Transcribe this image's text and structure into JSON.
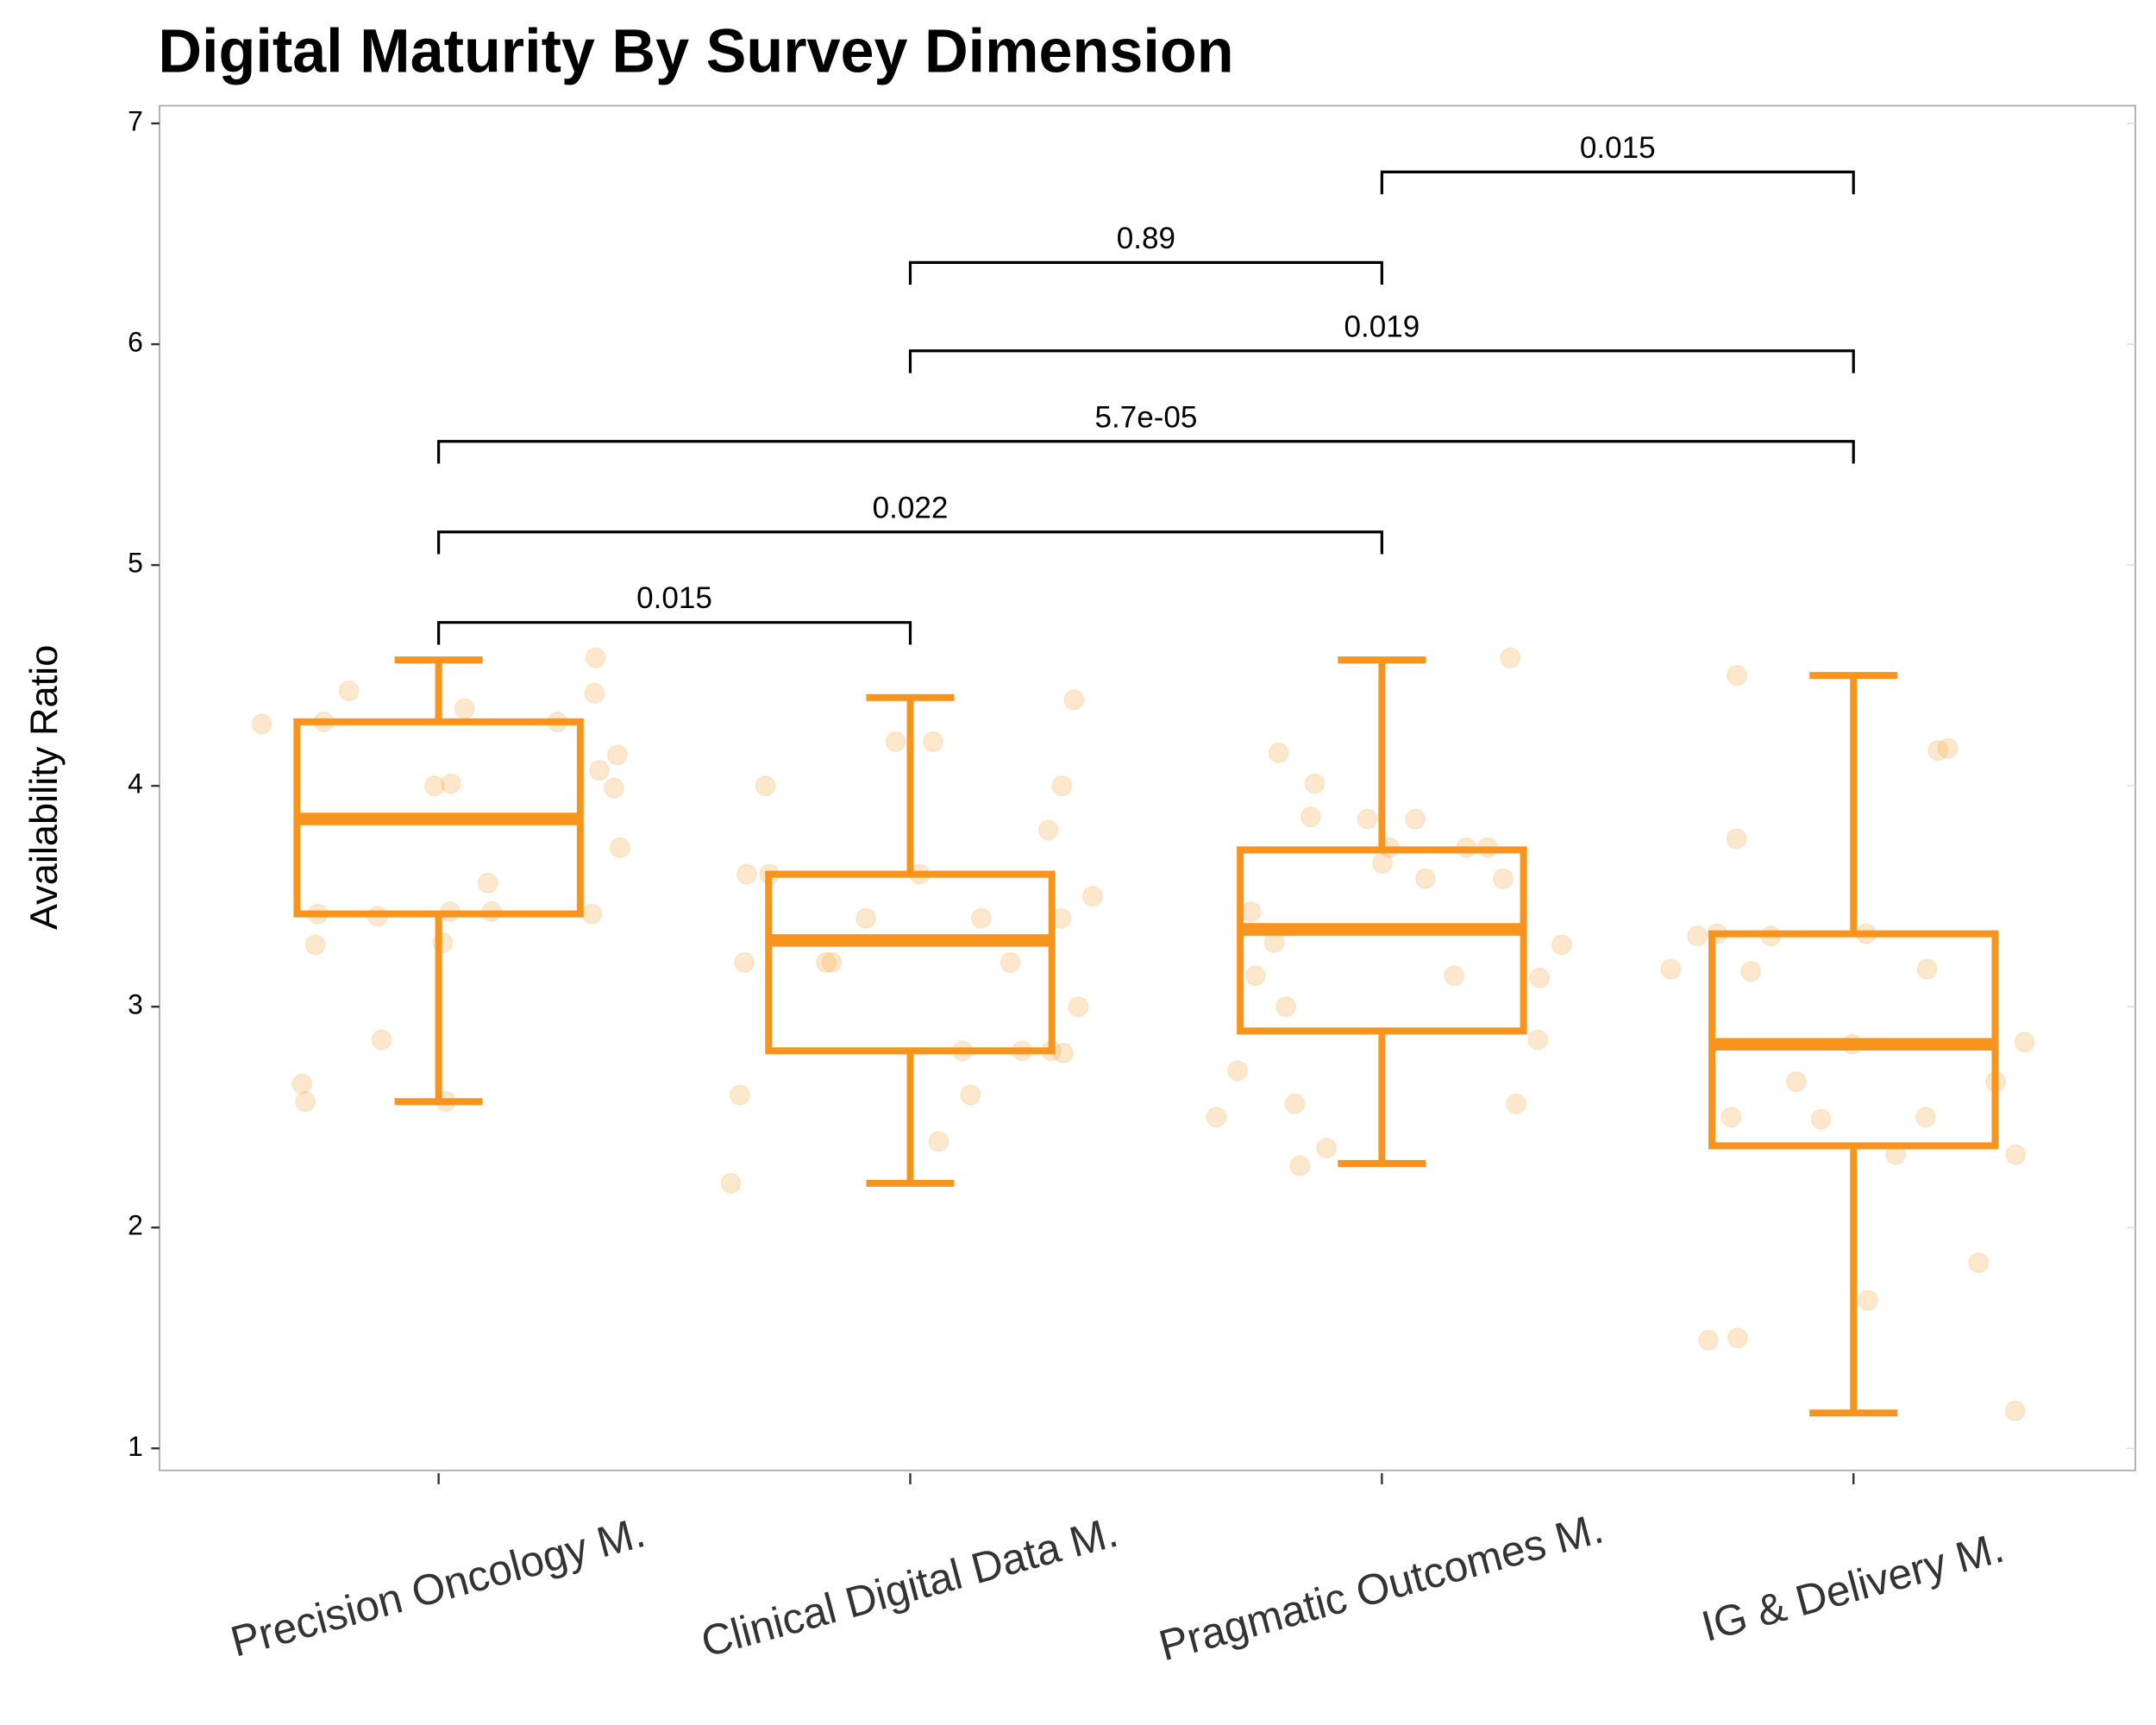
{
  "chart_data": {
    "type": "box",
    "title": "Digital Maturity By Survey Dimension",
    "y_label": "Availability Ratio",
    "categories": [
      "Precision Oncology M.",
      "Clinical Digital Data M.",
      "Pragmatic Outcomes M.",
      "IG & Delivery M."
    ],
    "color": "#f7941d",
    "ylim": [
      0.9,
      7.08
    ],
    "yticks": [
      1,
      2,
      3,
      4,
      5,
      6,
      7
    ],
    "boxes": [
      {
        "low": 2.57,
        "q1": 3.42,
        "median": 3.85,
        "q3": 4.29,
        "high": 4.57,
        "points": [
          4.58,
          4.43,
          4.42,
          4.35,
          4.29,
          4.28,
          4.29,
          4.14,
          3.99,
          4.01,
          4.07,
          4.0,
          3.72,
          3.56,
          3.43,
          3.42,
          3.43,
          3.41,
          3.42,
          3.28,
          3.29,
          2.85,
          2.65,
          2.57,
          2.57
        ]
      },
      {
        "low": 2.2,
        "q1": 2.8,
        "median": 3.3,
        "q3": 3.6,
        "high": 4.4,
        "points": [
          4.39,
          4.2,
          4.2,
          4.0,
          4.0,
          3.8,
          3.6,
          3.6,
          3.6,
          3.5,
          3.4,
          3.4,
          3.4,
          3.2,
          3.2,
          3.2,
          3.2,
          3.0,
          2.8,
          2.8,
          2.8,
          2.79,
          2.6,
          2.6,
          2.39,
          2.2
        ]
      },
      {
        "low": 2.29,
        "q1": 2.89,
        "median": 3.35,
        "q3": 3.71,
        "high": 4.57,
        "points": [
          4.58,
          4.15,
          4.01,
          3.86,
          3.85,
          3.85,
          3.72,
          3.72,
          3.72,
          3.65,
          3.58,
          3.58,
          3.43,
          3.29,
          3.28,
          3.14,
          3.14,
          3.13,
          3.0,
          2.85,
          2.71,
          2.56,
          2.56,
          2.5,
          2.36,
          2.28
        ]
      },
      {
        "low": 1.16,
        "q1": 2.37,
        "median": 2.83,
        "q3": 3.33,
        "high": 4.5,
        "points": [
          4.5,
          4.17,
          4.16,
          3.76,
          3.33,
          3.33,
          3.32,
          3.32,
          3.17,
          3.17,
          3.16,
          2.84,
          2.83,
          2.66,
          2.66,
          2.5,
          2.5,
          2.49,
          2.33,
          2.33,
          1.84,
          1.67,
          1.5,
          1.49,
          1.17
        ]
      }
    ],
    "comparisons": [
      {
        "from": "Precision Oncology M.",
        "to": "Clinical Digital Data M.",
        "label": "0.015",
        "y": 4.74
      },
      {
        "from": "Precision Oncology M.",
        "to": "Pragmatic Outcomes M.",
        "label": "0.022",
        "y": 5.15
      },
      {
        "from": "Precision Oncology M.",
        "to": "IG & Delivery M.",
        "label": "5.7e-05",
        "y": 5.56
      },
      {
        "from": "Clinical Digital Data M.",
        "to": "IG & Delivery M.",
        "label": "0.019",
        "y": 5.97
      },
      {
        "from": "Clinical Digital Data M.",
        "to": "Pragmatic Outcomes M.",
        "label": "0.89",
        "y": 6.37
      },
      {
        "from": "Pragmatic Outcomes M.",
        "to": "IG & Delivery M.",
        "label": "0.015",
        "y": 6.78
      }
    ]
  }
}
